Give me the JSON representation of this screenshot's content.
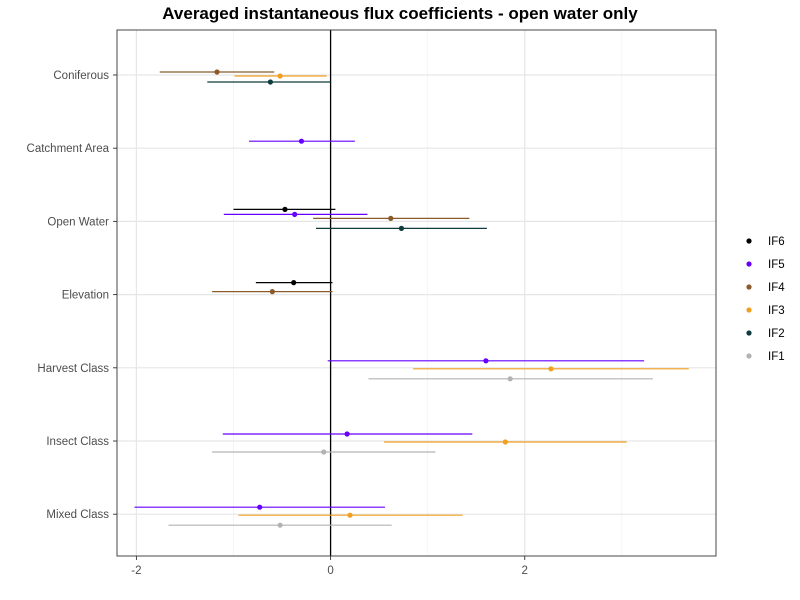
{
  "chart_data": {
    "type": "scatter",
    "subtype": "point-range (coefficient plot)",
    "title": "Averaged instantaneous flux coefficients - open water only",
    "xlabel": "",
    "ylabel": "",
    "xlim": [
      -2.2,
      3.97
    ],
    "x_ticks": [
      -2,
      0,
      2
    ],
    "x_tick_labels": [
      "-2",
      "0",
      "2"
    ],
    "vline": 0,
    "grid": true,
    "legend_position": "right",
    "categories": [
      "Coniferous",
      "Catchment Area",
      "Open Water",
      "Elevation",
      "Harvest Class",
      "Insect Class",
      "Mixed Class"
    ],
    "legend": [
      "IF6",
      "IF5",
      "IF4",
      "IF3",
      "IF2",
      "IF1"
    ],
    "series": [
      {
        "name": "IF6",
        "color": "#000000",
        "points": [
          {
            "category": "Open Water",
            "estimate": -0.47,
            "low": -1.0,
            "high": 0.05
          },
          {
            "category": "Elevation",
            "estimate": -0.38,
            "low": -0.77,
            "high": 0.02
          }
        ]
      },
      {
        "name": "IF5",
        "color": "#6600ff",
        "points": [
          {
            "category": "Catchment Area",
            "estimate": -0.3,
            "low": -0.84,
            "high": 0.25
          },
          {
            "category": "Open Water",
            "estimate": -0.37,
            "low": -1.1,
            "high": 0.38
          },
          {
            "category": "Harvest Class",
            "estimate": 1.6,
            "low": -0.03,
            "high": 3.23
          },
          {
            "category": "Insect Class",
            "estimate": 0.17,
            "low": -1.11,
            "high": 1.46
          },
          {
            "category": "Mixed Class",
            "estimate": -0.73,
            "low": -2.02,
            "high": 0.56
          }
        ]
      },
      {
        "name": "IF4",
        "color": "#8b5a2b",
        "points": [
          {
            "category": "Coniferous",
            "estimate": -1.17,
            "low": -1.76,
            "high": -0.58
          },
          {
            "category": "Open Water",
            "estimate": 0.62,
            "low": -0.18,
            "high": 1.43
          },
          {
            "category": "Elevation",
            "estimate": -0.6,
            "low": -1.22,
            "high": 0.02
          }
        ]
      },
      {
        "name": "IF3",
        "color": "#f0a020",
        "points": [
          {
            "category": "Coniferous",
            "estimate": -0.52,
            "low": -0.99,
            "high": -0.04
          },
          {
            "category": "Harvest Class",
            "estimate": 2.27,
            "low": 0.85,
            "high": 3.69
          },
          {
            "category": "Insect Class",
            "estimate": 1.8,
            "low": 0.55,
            "high": 3.05
          },
          {
            "category": "Mixed Class",
            "estimate": 0.2,
            "low": -0.95,
            "high": 1.36
          }
        ]
      },
      {
        "name": "IF2",
        "color": "#0e3b3b",
        "points": [
          {
            "category": "Coniferous",
            "estimate": -0.62,
            "low": -1.27,
            "high": 0.0
          },
          {
            "category": "Open Water",
            "estimate": 0.73,
            "low": -0.15,
            "high": 1.61
          }
        ]
      },
      {
        "name": "IF1",
        "color": "#b3b3b3",
        "points": [
          {
            "category": "Harvest Class",
            "estimate": 1.85,
            "low": 0.39,
            "high": 3.32
          },
          {
            "category": "Insect Class",
            "estimate": -0.07,
            "low": -1.22,
            "high": 1.08
          },
          {
            "category": "Mixed Class",
            "estimate": -0.52,
            "low": -1.67,
            "high": 0.63
          }
        ]
      }
    ]
  }
}
